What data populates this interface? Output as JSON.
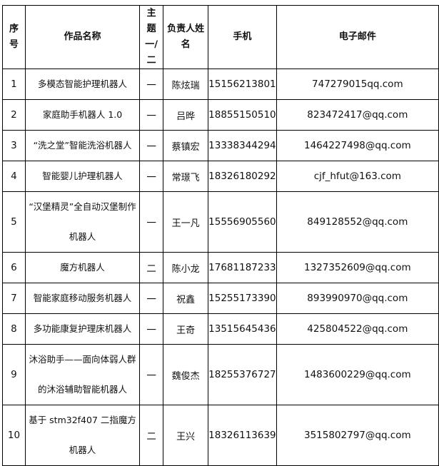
{
  "headers": {
    "index": "序号",
    "title": "作品名称",
    "theme": "主题一/二",
    "leader": "负责人姓名",
    "phone": "手机",
    "email": "电子邮件"
  },
  "rows": [
    {
      "index": "1",
      "title": "多模态智能护理机器人",
      "theme": "一",
      "leader": "陈炫瑞",
      "phone": "15156213801",
      "email": "747279015qq.com"
    },
    {
      "index": "2",
      "title": "家庭助手机器人 1.0",
      "theme": "一",
      "leader": "吕晔",
      "phone": "18855150510",
      "email": "823472417@qq.com"
    },
    {
      "index": "3",
      "title": "“洗之堂”智能洗浴机器人",
      "theme": "一",
      "leader": "蔡镇宏",
      "phone": "13338344294",
      "email": "1464227498@qq.com"
    },
    {
      "index": "4",
      "title": "智能婴儿护理机器人",
      "theme": "一",
      "leader": "常璟飞",
      "phone": "18326180292",
      "email": "cjf_hfut@163.com"
    },
    {
      "index": "5",
      "title": "“汉堡精灵”全自动汉堡制作机器人",
      "theme": "一",
      "leader": "王一凡",
      "phone": "15556905560",
      "email": "849128552@qq.com",
      "tall": true
    },
    {
      "index": "6",
      "title": "魔方机器人",
      "theme": "二",
      "leader": "陈小龙",
      "phone": "17681187233",
      "email": "1327352609@qq.com"
    },
    {
      "index": "7",
      "title": "智能家庭移动服务机器人",
      "theme": "一",
      "leader": "祝鑫",
      "phone": "15255173390",
      "email": "893990970@qq.com"
    },
    {
      "index": "8",
      "title": "多功能康复护理床机器人",
      "theme": "一",
      "leader": "王奇",
      "phone": "13515645436",
      "email": "425804522@qq.com"
    },
    {
      "index": "9",
      "title": "沐浴助手——面向体弱人群的沐浴辅助智能机器人",
      "theme": "一",
      "leader": "魏俊杰",
      "phone": "18255376727",
      "email": "1483600229@qq.com",
      "tall": true
    },
    {
      "index": "10",
      "title": "基于 stm32f407 二指魔方机器人",
      "theme": "二",
      "leader": "王兴",
      "phone": "18326113639",
      "email": "3515802797@qq.com",
      "tall": true
    }
  ]
}
